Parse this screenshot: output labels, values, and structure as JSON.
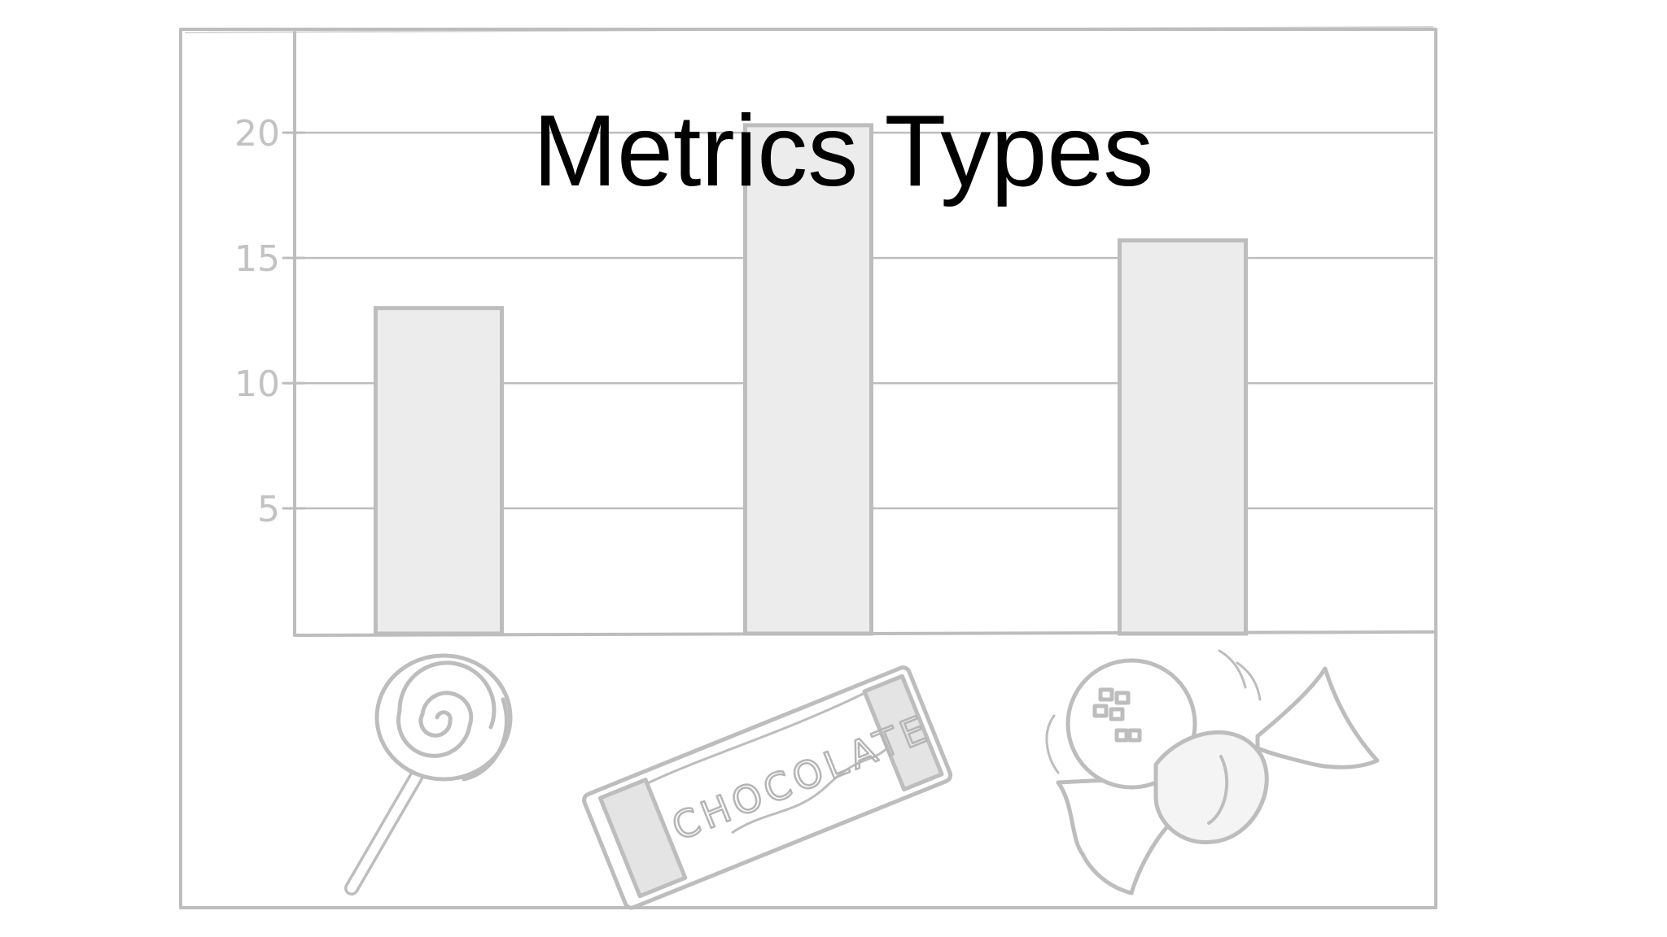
{
  "title": "Metrics Types",
  "colors": {
    "pencil": "#bdbdbd",
    "bar_fill": "#ececec",
    "title": "#000000"
  },
  "chart_data": {
    "type": "bar",
    "categories": [
      "lollipop-icon",
      "chocolate-bar-icon",
      "wrapped-candy-icon"
    ],
    "values": [
      13,
      20.3,
      15.7
    ],
    "yticks": [
      "5",
      "10",
      "15",
      "20"
    ],
    "ylim": [
      0,
      24
    ],
    "grid": true,
    "legend": "none"
  },
  "illustrations": {
    "chocolate_wrapper_text": "CHOCOLATE"
  }
}
